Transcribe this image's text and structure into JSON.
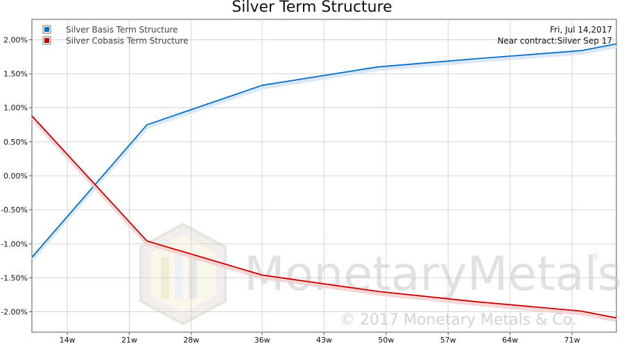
{
  "chart_data": {
    "type": "line",
    "title": "Silver Term Structure",
    "date_label": "Fri, Jul 14,2017",
    "near_contract_label": "Near contract:Silver Sep 17",
    "x_tick_labels": [
      "14w",
      "21w",
      "28w",
      "36w",
      "43w",
      "50w",
      "57w",
      "64w",
      "71w"
    ],
    "x_tick_weeks": [
      14,
      21,
      28,
      36,
      43,
      50,
      57,
      64,
      71
    ],
    "xlim": [
      10,
      76
    ],
    "y_tick_labels": [
      "2.00%",
      "1.50%",
      "1.00%",
      "0.50%",
      "0.00%",
      "-0.50%",
      "-1.00%",
      "-1.50%",
      "-2.00%"
    ],
    "y_tick_values": [
      2.0,
      1.5,
      1.0,
      0.5,
      0.0,
      -0.5,
      -1.0,
      -1.5,
      -2.0
    ],
    "ylim": [
      -2.3,
      2.3
    ],
    "grid": true,
    "legend_position": "top-left",
    "series": [
      {
        "name": "Silver Basis Term Structure",
        "color": "#0a6fc2",
        "x": [
          10,
          23,
          36,
          49,
          60,
          72,
          76
        ],
        "y": [
          -1.2,
          0.75,
          1.33,
          1.6,
          1.72,
          1.84,
          1.94
        ]
      },
      {
        "name": "Silver Cobasis Term Structure",
        "color": "#c40000",
        "x": [
          10,
          23,
          36,
          49,
          60,
          72,
          76
        ],
        "y": [
          0.88,
          -0.96,
          -1.46,
          -1.7,
          -1.85,
          -1.99,
          -2.09
        ]
      }
    ]
  },
  "watermark": {
    "brand": "MonetaryMetals",
    "registered": "®",
    "copyright": "© 2017 Monetary Metals & Co."
  }
}
